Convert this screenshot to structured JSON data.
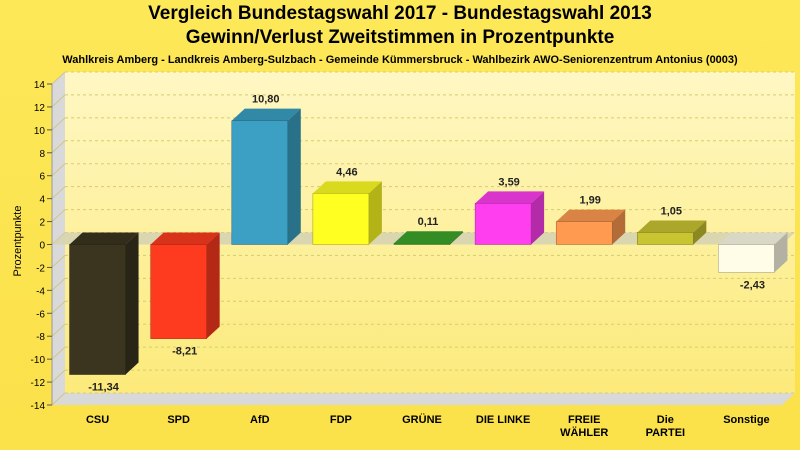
{
  "chart_data": {
    "type": "bar",
    "title": "Vergleich Bundestagswahl 2017 - Bundestagswahl 2013",
    "title2": "Gewinn/Verlust Zweitstimmen in Prozentpunkte",
    "subtitle": "Wahlkreis Amberg - Landkreis Amberg-Sulzbach - Gemeinde Kümmersbruck - Wahlbezirk AWO-Seniorenzentrum Antonius (0003)",
    "ylabel": "Prozentpunkte",
    "xlabel": "",
    "ylim": [
      -14,
      14
    ],
    "yticks": [
      -14,
      -12,
      -10,
      -8,
      -6,
      -4,
      -2,
      0,
      2,
      4,
      6,
      8,
      10,
      12,
      14
    ],
    "grid": true,
    "categories": [
      "CSU",
      "SPD",
      "AfD",
      "FDP",
      "GRÜNE",
      "DIE LINKE",
      "FREIE WÄHLER",
      "Die PARTEI",
      "Sonstige"
    ],
    "values": [
      -11.34,
      -8.21,
      10.8,
      4.46,
      0.11,
      3.59,
      1.99,
      1.05,
      -2.43
    ],
    "value_labels": [
      "-11,34",
      "-8,21",
      "10,80",
      "4,46",
      "0,11",
      "3,59",
      "1,99",
      "1,05",
      "-2,43"
    ],
    "colors": [
      "#3b3520",
      "#ff3b1f",
      "#3ba0c4",
      "#ffff22",
      "#3da62a",
      "#ff3ef0",
      "#ff9a50",
      "#c8c432",
      "#fffde8"
    ]
  }
}
